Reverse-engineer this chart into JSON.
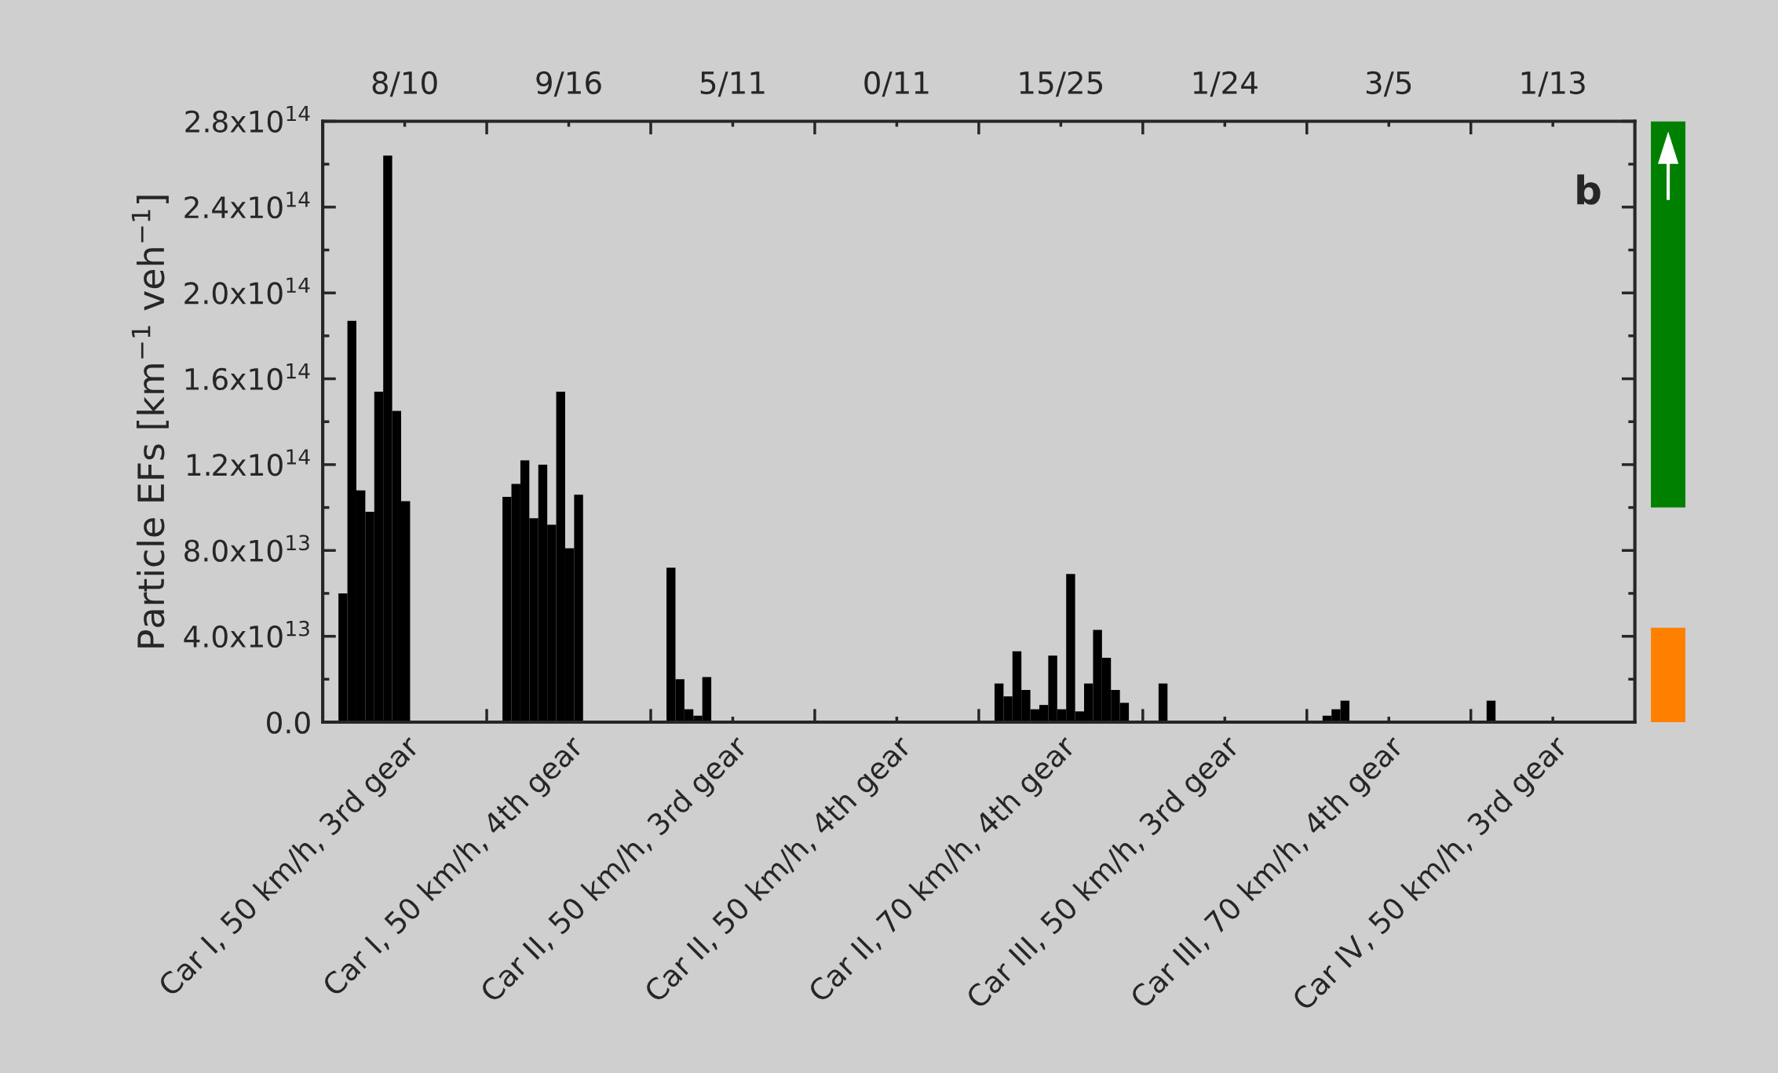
{
  "chart_data": [
    {
      "type": "bar",
      "ylabel": "Particle EFs [km$^{−1}$ veh$^{−1}$]",
      "categories": [
        "Car I, 50 km/h, 3rd gear",
        "Car I, 50 km/h, 4th gear",
        "Car II, 50 km/h, 3rd gear",
        "Car II, 50 km/h, 4th gear",
        "Car II, 70 km/h, 4th gear",
        "Car III, 50 km/h, 3rd gear",
        "Car III, 70 km/h, 4th gear",
        "Car IV, 50 km/h, 3rd gear"
      ],
      "series": [
        {
          "color": "#000000",
          "values": [
            60000000000000.0,
            105000000000000.0,
            72000000000000.0,
            null,
            18000000000000.0,
            18000000000000.0,
            3000000000000.0,
            10000000000000.0
          ]
        },
        {
          "color": "#000000",
          "values": [
            187000000000000.0,
            111000000000000.0,
            20000000000000.0,
            null,
            12000000000000.0,
            null,
            6000000000000.0,
            null
          ]
        },
        {
          "color": "#000000",
          "values": [
            108000000000000.0,
            122000000000000.0,
            6000000000000.0,
            null,
            33000000000000.0,
            null,
            10000000000000.0,
            null
          ]
        },
        {
          "color": "#000000",
          "values": [
            98000000000000.0,
            95000000000000.0,
            3000000000000.0,
            null,
            15000000000000.0,
            null,
            null,
            null
          ]
        },
        {
          "color": "#000000",
          "values": [
            154000000000000.0,
            120000000000000.0,
            21000000000000.0,
            null,
            6000000000000.0,
            null,
            null,
            null
          ]
        },
        {
          "color": "#000000",
          "values": [
            264000000000000.0,
            92000000000000.0,
            null,
            null,
            8000000000000.0,
            null,
            null,
            null
          ]
        },
        {
          "color": "#000000",
          "values": [
            145000000000000.0,
            154000000000000.0,
            null,
            null,
            31000000000000.0,
            null,
            null,
            null
          ]
        },
        {
          "color": "#000000",
          "values": [
            103000000000000.0,
            81000000000000.0,
            null,
            null,
            6000000000000.0,
            null,
            null,
            null
          ]
        },
        {
          "color": "#000000",
          "values": [
            null,
            106000000000000.0,
            null,
            null,
            69000000000000.0,
            null,
            null,
            null
          ]
        },
        {
          "color": "#000000",
          "values": [
            null,
            null,
            null,
            null,
            5000000000000.0,
            null,
            null,
            null
          ]
        },
        {
          "color": "#000000",
          "values": [
            null,
            null,
            null,
            null,
            18000000000000.0,
            null,
            null,
            null
          ]
        },
        {
          "color": "#000000",
          "values": [
            null,
            null,
            null,
            null,
            43000000000000.0,
            null,
            null,
            null
          ]
        },
        {
          "color": "#000000",
          "values": [
            null,
            null,
            null,
            null,
            30000000000000.0,
            null,
            null,
            null
          ]
        },
        {
          "color": "#000000",
          "values": [
            null,
            null,
            null,
            null,
            15000000000000.0,
            null,
            null,
            null
          ]
        },
        {
          "color": "#000000",
          "values": [
            null,
            null,
            null,
            null,
            9000000000000.0,
            null,
            null,
            null
          ]
        }
      ],
      "ylim": [
        0,
        280000000000000.0
      ],
      "yticks": [
        {
          "value": 0,
          "label": "0.0"
        },
        {
          "value": 40000000000000.0,
          "label": "4.0x10$^{13}$"
        },
        {
          "value": 80000000000000.0,
          "label": "8.0x10$^{13}$"
        },
        {
          "value": 120000000000000.0,
          "label": "1.2x10$^{14}$"
        },
        {
          "value": 160000000000000.0,
          "label": "1.6x10$^{14}$"
        },
        {
          "value": 200000000000000.0,
          "label": "2.0x10$^{14}$"
        },
        {
          "value": 240000000000000.0,
          "label": "2.4x10$^{14}$"
        },
        {
          "value": 280000000000000.0,
          "label": "2.8x10$^{14}$"
        }
      ],
      "annotations": [
        "b",
        "8/10",
        "9/16",
        "5/11",
        "0/11",
        "15/25",
        "1/24",
        "3/5",
        "1/13"
      ]
    },
    {
      "type": "bar",
      "categories": [
        null
      ],
      "series": [
        {
          "color": "#008000",
          "values": [
            180000000000000.0
          ],
          "base": [
            100000000000000.0
          ]
        },
        {
          "color": "#ff8000",
          "values": [
            44000000000000.0
          ],
          "base": [
            0
          ]
        }
      ],
      "ylim": [
        0,
        280000000000000.0
      ],
      "tick_labels": false
    }
  ]
}
